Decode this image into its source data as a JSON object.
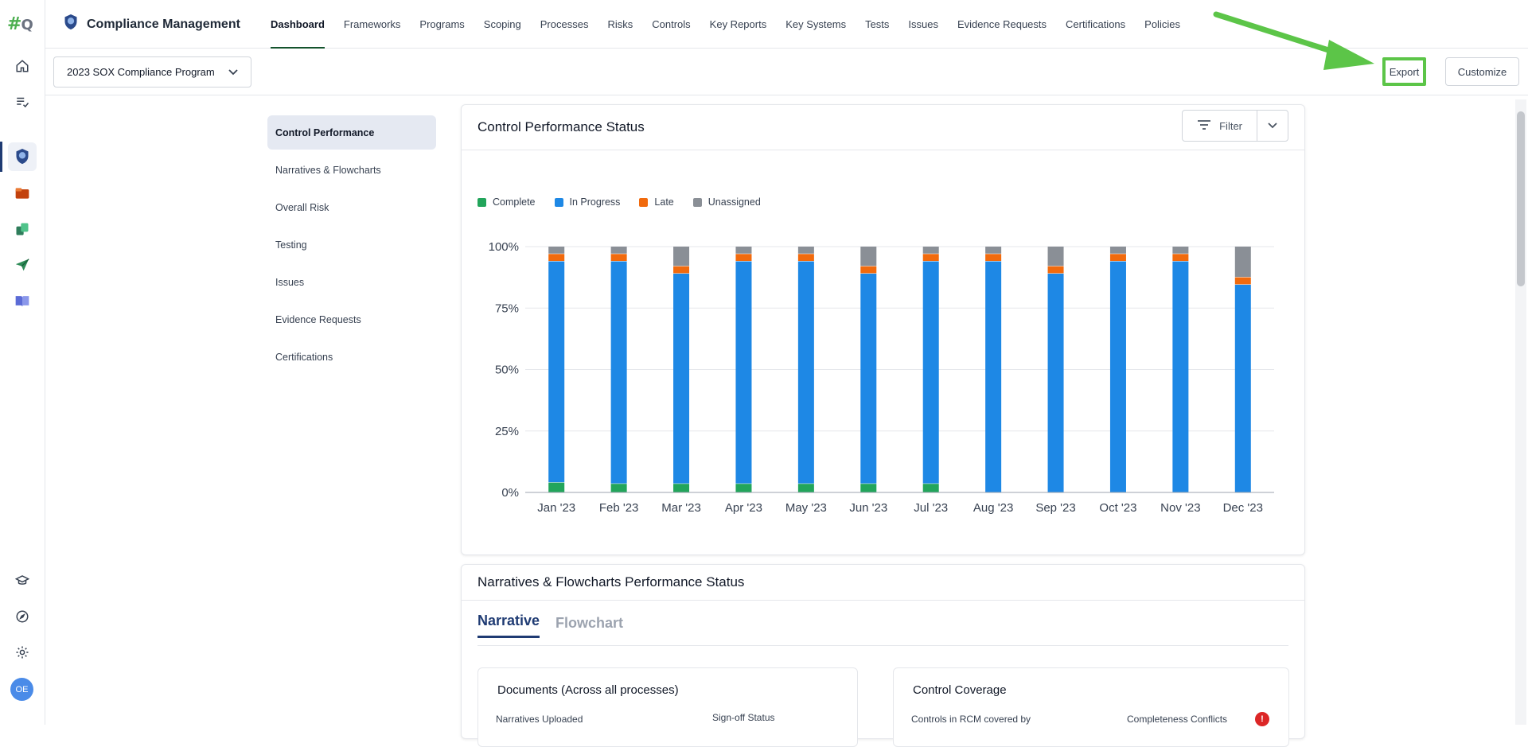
{
  "app": {
    "title": "Compliance Management"
  },
  "nav": [
    {
      "label": "Dashboard",
      "active": true
    },
    {
      "label": "Frameworks"
    },
    {
      "label": "Programs"
    },
    {
      "label": "Scoping"
    },
    {
      "label": "Processes"
    },
    {
      "label": "Risks"
    },
    {
      "label": "Controls"
    },
    {
      "label": "Key Reports"
    },
    {
      "label": "Key Systems"
    },
    {
      "label": "Tests"
    },
    {
      "label": "Issues"
    },
    {
      "label": "Evidence Requests"
    },
    {
      "label": "Certifications"
    },
    {
      "label": "Policies"
    }
  ],
  "rail": {
    "logo_hash": "#",
    "logo_q": "Q",
    "avatar_initials": "OE"
  },
  "toolbar": {
    "program_select_value": "2023 SOX Compliance Program",
    "export_label": "Export",
    "customize_label": "Customize"
  },
  "side_menu": [
    {
      "label": "Control Performance",
      "active": true
    },
    {
      "label": "Narratives & Flowcharts"
    },
    {
      "label": "Overall Risk"
    },
    {
      "label": "Testing"
    },
    {
      "label": "Issues"
    },
    {
      "label": "Evidence Requests"
    },
    {
      "label": "Certifications"
    }
  ],
  "control_card": {
    "title": "Control Performance Status",
    "filter_label": "Filter"
  },
  "chart_data": {
    "type": "bar",
    "stacked": true,
    "title": "Control Performance Status",
    "xlabel": "",
    "ylabel": "",
    "ylim": [
      0,
      100
    ],
    "yticks": [
      "0%",
      "25%",
      "50%",
      "75%",
      "100%"
    ],
    "grid": true,
    "legend_position": "top-left",
    "categories": [
      "Jan '23",
      "Feb '23",
      "Mar '23",
      "Apr '23",
      "May '23",
      "Jun '23",
      "Jul '23",
      "Aug '23",
      "Sep '23",
      "Oct '23",
      "Nov '23",
      "Dec '23"
    ],
    "series": [
      {
        "name": "Complete",
        "color": "#22a55b",
        "values": [
          4,
          3.5,
          3.5,
          3.5,
          3.5,
          3.5,
          3.5,
          0,
          0,
          0,
          0,
          0
        ]
      },
      {
        "name": "In Progress",
        "color": "#1e88e5",
        "values": [
          90,
          90.5,
          85.5,
          90.5,
          90.5,
          85.5,
          90.5,
          94,
          89,
          94,
          94,
          84.5
        ]
      },
      {
        "name": "Late",
        "color": "#f16a0d",
        "values": [
          3,
          3,
          3,
          3,
          3,
          3,
          3,
          3,
          3,
          3,
          3,
          3
        ]
      },
      {
        "name": "Unassigned",
        "color": "#8a8f96",
        "values": [
          3,
          3,
          8,
          3,
          3,
          8,
          3,
          3,
          8,
          3,
          3,
          12.5
        ]
      }
    ]
  },
  "narratives_card": {
    "title": "Narratives & Flowcharts Performance Status",
    "tabs": [
      {
        "label": "Narrative",
        "active": true
      },
      {
        "label": "Flowchart"
      }
    ],
    "documents": {
      "title": "Documents (Across all processes)",
      "label_left": "Narratives Uploaded",
      "label_right": "Sign-off Status"
    },
    "coverage": {
      "title": "Control Coverage",
      "label_left": "Controls in RCM covered by",
      "label_right": "Completeness Conflicts",
      "alert": "!"
    }
  }
}
